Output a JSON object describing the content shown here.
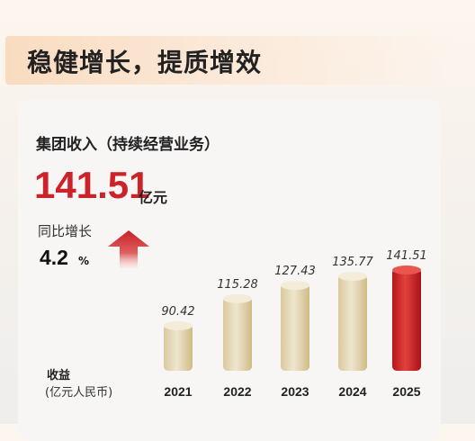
{
  "header": {
    "title": "稳健增长，提质增效"
  },
  "metric": {
    "label": "集团收入（持续经营业务）",
    "value": "141.51",
    "unit": "亿元",
    "yoy_label": "同比增长",
    "yoy_value": "4.2",
    "yoy_unit": "%"
  },
  "chart_data": {
    "type": "bar",
    "categories": [
      "2021",
      "2022",
      "2023",
      "2024",
      "2025"
    ],
    "values": [
      90.42,
      115.28,
      127.43,
      135.77,
      141.51
    ],
    "ylabel": "收益",
    "yunit": "(亿元人民币)",
    "highlight_index": 4,
    "colors": {
      "normal_top": "#e6dcc4",
      "normal_bottom": "#d4c190",
      "highlight_top": "#e03a35",
      "highlight_bottom": "#b5171c",
      "accent": "#cc2229"
    }
  }
}
